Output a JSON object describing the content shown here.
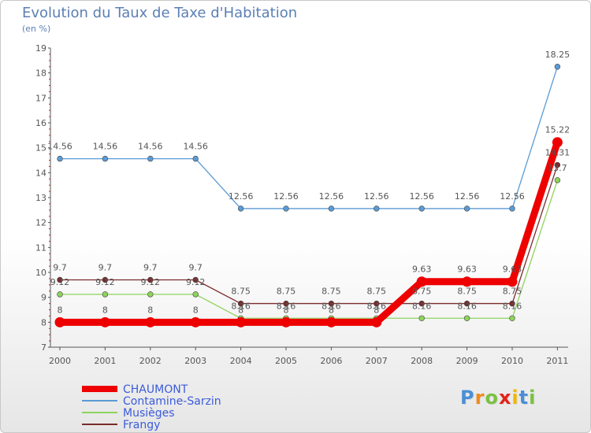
{
  "chart_data": {
    "type": "line",
    "title": "Evolution du Taux de Taxe d'Habitation",
    "subtitle": "(en %)",
    "categories": [
      "2000",
      "2001",
      "2002",
      "2003",
      "2004",
      "2005",
      "2006",
      "2007",
      "2008",
      "2009",
      "2010",
      "2011"
    ],
    "y_ticks": [
      "7",
      "8",
      "9",
      "10",
      "11",
      "12",
      "13",
      "14",
      "15",
      "16",
      "17",
      "18",
      "19"
    ],
    "ylim": [
      7,
      19
    ],
    "grid": false,
    "series": [
      {
        "name": "CHAUMONT",
        "color": "#ee0000",
        "emphasis": true,
        "values": [
          8,
          8,
          8,
          8,
          8,
          8,
          8,
          8,
          9.63,
          9.63,
          9.63,
          15.22
        ],
        "labels": [
          "8",
          "8",
          "8",
          "8",
          "8",
          "8",
          "8",
          "8",
          "9.63",
          "9.63",
          "9.63",
          "15.22"
        ]
      },
      {
        "name": "Contamine-Sarzin",
        "color": "#5b9bd5",
        "values": [
          14.56,
          14.56,
          14.56,
          14.56,
          12.56,
          12.56,
          12.56,
          12.56,
          12.56,
          12.56,
          12.56,
          18.25
        ],
        "labels": [
          "14.56",
          "14.56",
          "14.56",
          "14.56",
          "12.56",
          "12.56",
          "12.56",
          "12.56",
          "12.56",
          "12.56",
          "12.56",
          "18.25"
        ]
      },
      {
        "name": "Musièges",
        "color": "#8ed35c",
        "values": [
          9.12,
          9.12,
          9.12,
          9.12,
          8.16,
          8.16,
          8.16,
          8.16,
          8.16,
          8.16,
          8.16,
          13.7
        ],
        "labels": [
          "9.12",
          "9.12",
          "9.12",
          "9.12",
          "8.16",
          "8.16",
          "8.16",
          "8.16",
          "8.16",
          "8.16",
          "8.16",
          "13.7"
        ]
      },
      {
        "name": "Frangy",
        "color": "#7b2b2b",
        "values": [
          9.7,
          9.7,
          9.7,
          9.7,
          8.75,
          8.75,
          8.75,
          8.75,
          8.75,
          8.75,
          8.75,
          14.31
        ],
        "labels": [
          "9.7",
          "9.7",
          "9.7",
          "9.7",
          "8.75",
          "8.75",
          "8.75",
          "8.75",
          "8.75",
          "8.75",
          "8.75",
          "14.31"
        ]
      }
    ],
    "legend_position": "bottom-left"
  },
  "branding": {
    "logo_letters": [
      "P",
      "r",
      "o",
      "x",
      "i",
      "t",
      "i"
    ],
    "logo_colors": [
      "#4a8fd6",
      "#ef8a1f",
      "#7ac143",
      "#e2231a",
      "#f2b705",
      "#4a8fd6",
      "#7ac143"
    ]
  },
  "colors": {
    "axis": "#555555",
    "title": "#5b7fb6"
  }
}
